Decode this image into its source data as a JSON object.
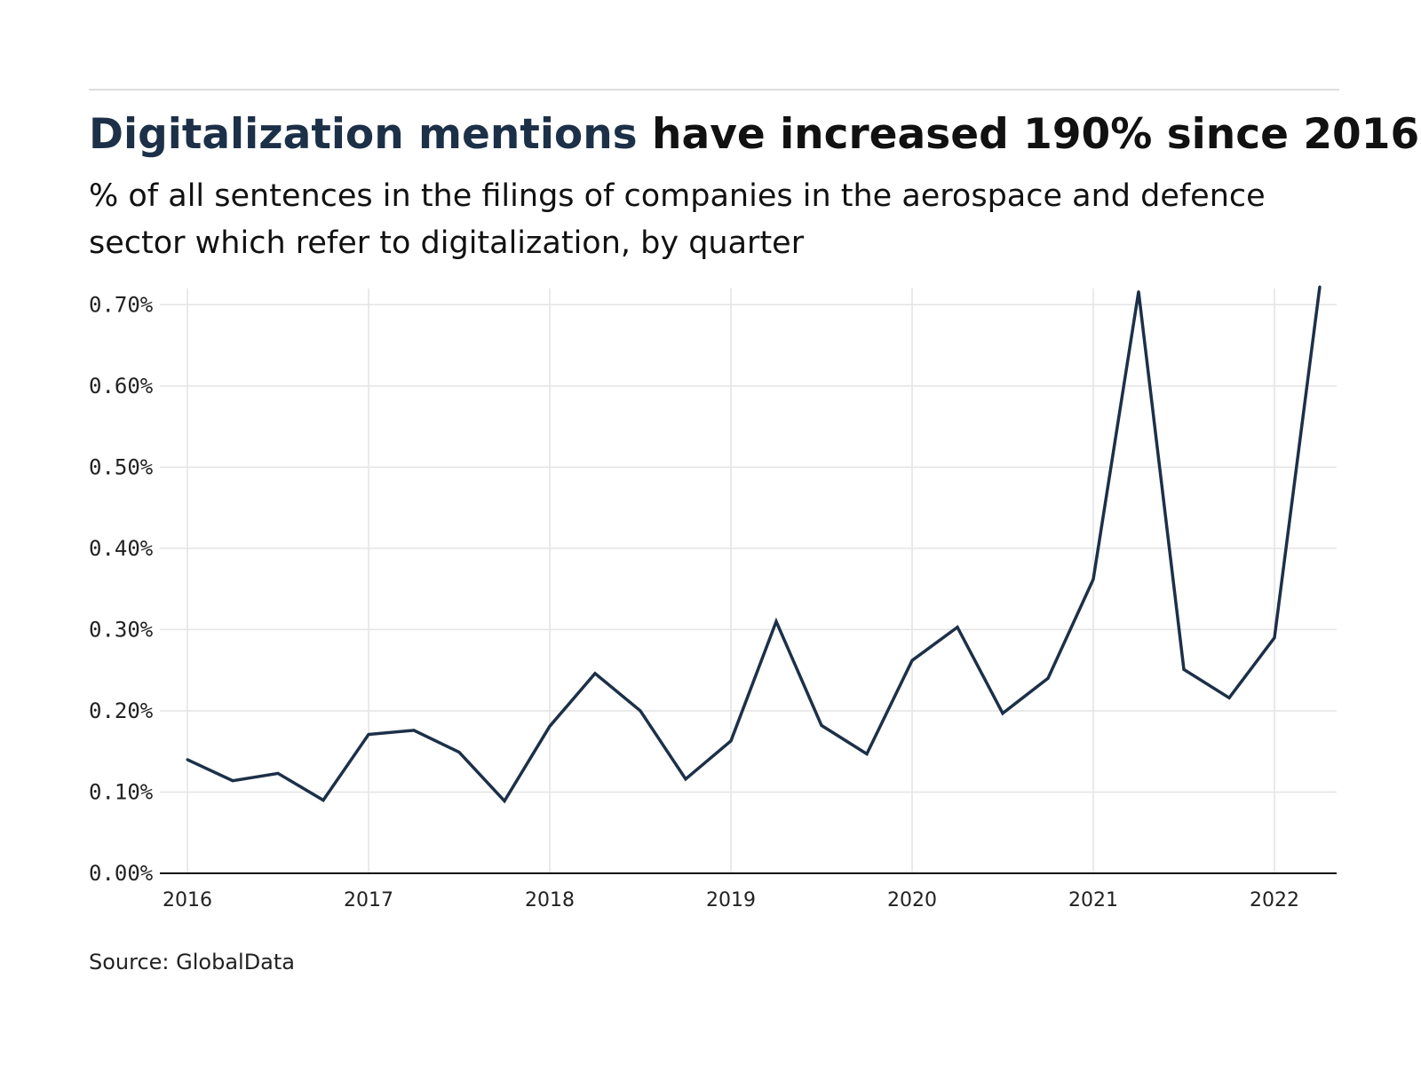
{
  "header": {
    "title_highlight": "Digitalization mentions",
    "title_rest": " have increased 190% since 2016",
    "subtitle": "% of all sentences in the filings of companies in the aerospace and defence sector which refer to digitalization, by quarter"
  },
  "footer": {
    "source": "Source: GlobalData"
  },
  "colors": {
    "line": "#1c3048",
    "grid": "#e4e4e4",
    "axis": "#111111"
  },
  "chart_data": {
    "type": "line",
    "title": "Digitalization mentions have increased 190% since 2016",
    "subtitle": "% of all sentences in the filings of companies in the aerospace and defence sector which refer to digitalization, by quarter",
    "xlabel": "",
    "ylabel": "",
    "ylim": [
      0,
      0.72
    ],
    "y_ticks": [
      0,
      0.1,
      0.2,
      0.3,
      0.4,
      0.5,
      0.6,
      0.7
    ],
    "y_tick_labels": [
      "0.00%",
      "0.10%",
      "0.20%",
      "0.30%",
      "0.40%",
      "0.50%",
      "0.60%",
      "0.70%"
    ],
    "x_ticks": [
      2016,
      2017,
      2018,
      2019,
      2020,
      2021,
      2022
    ],
    "x_tick_labels": [
      "2016",
      "2017",
      "2018",
      "2019",
      "2020",
      "2021",
      "2022"
    ],
    "grid": true,
    "series": [
      {
        "x": [
          "2016 Q1",
          "2016 Q2",
          "2016 Q3",
          "2016 Q4",
          "2017 Q1",
          "2017 Q2",
          "2017 Q3",
          "2017 Q4",
          "2018 Q1",
          "2018 Q2",
          "2018 Q3",
          "2018 Q4",
          "2019 Q1",
          "2019 Q2",
          "2019 Q3",
          "2019 Q4",
          "2020 Q1",
          "2020 Q2",
          "2020 Q3",
          "2020 Q4",
          "2021 Q1",
          "2021 Q2",
          "2021 Q3",
          "2021 Q4",
          "2022 Q1",
          "2022 Q2"
        ],
        "values": [
          0.14,
          0.114,
          0.123,
          0.09,
          0.171,
          0.176,
          0.149,
          0.089,
          0.181,
          0.246,
          0.2,
          0.116,
          0.163,
          0.31,
          0.182,
          0.147,
          0.262,
          0.303,
          0.197,
          0.24,
          0.362,
          0.716,
          0.251,
          0.216,
          0.29,
          0.722
        ]
      }
    ]
  }
}
